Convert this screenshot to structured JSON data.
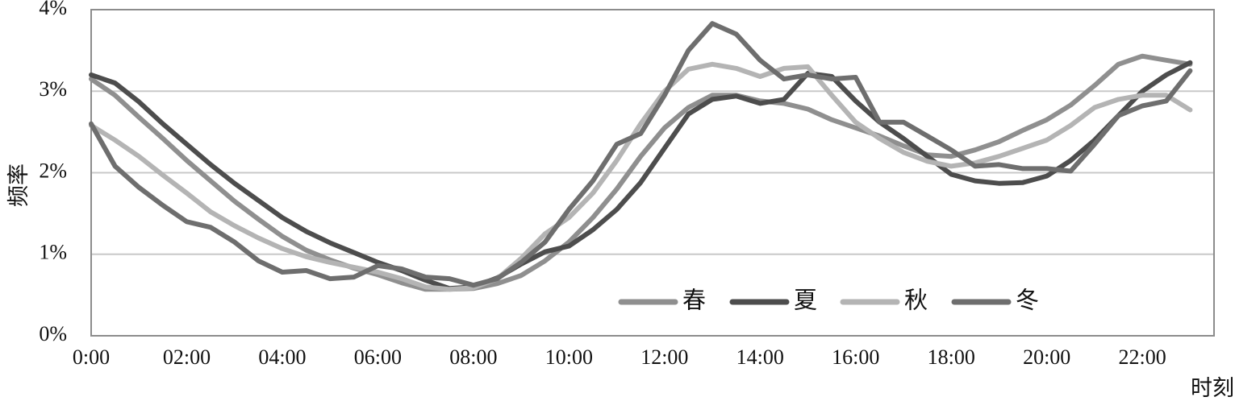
{
  "chart_data": {
    "type": "line",
    "xlabel": "时刻",
    "ylabel": "频率",
    "x_tick_labels": [
      "0:00",
      "02:00",
      "04:00",
      "06:00",
      "08:00",
      "10:00",
      "12:00",
      "14:00",
      "16:00",
      "18:00",
      "20:00",
      "22:00"
    ],
    "x_tick_hours": [
      0,
      2,
      4,
      6,
      8,
      10,
      12,
      14,
      16,
      18,
      20,
      22
    ],
    "y_tick_labels": [
      "0%",
      "1%",
      "2%",
      "3%",
      "4%"
    ],
    "y_ticks": [
      0,
      1,
      2,
      3,
      4
    ],
    "ylim": [
      0,
      4
    ],
    "xlim": [
      0,
      23.5
    ],
    "y_unit": "%",
    "grid": true,
    "legend_position": "bottom-right",
    "x": [
      0,
      0.5,
      1,
      1.5,
      2,
      2.5,
      3,
      3.5,
      4,
      4.5,
      5,
      5.5,
      6,
      6.5,
      7,
      7.5,
      8,
      8.5,
      9,
      9.5,
      10,
      10.5,
      11,
      11.5,
      12,
      12.5,
      13,
      13.5,
      14,
      14.5,
      15,
      15.5,
      16,
      16.5,
      17,
      17.5,
      18,
      18.5,
      19,
      19.5,
      20,
      20.5,
      21,
      21.5,
      22,
      22.5,
      23
    ],
    "series": [
      {
        "name": "春",
        "color": "#8f8f8f",
        "values": [
          3.15,
          2.95,
          2.68,
          2.42,
          2.15,
          1.9,
          1.65,
          1.43,
          1.22,
          1.05,
          0.93,
          0.83,
          0.75,
          0.65,
          0.57,
          0.57,
          0.58,
          0.64,
          0.74,
          0.92,
          1.15,
          1.45,
          1.8,
          2.2,
          2.55,
          2.8,
          2.95,
          2.95,
          2.88,
          2.85,
          2.78,
          2.65,
          2.55,
          2.45,
          2.33,
          2.22,
          2.2,
          2.28,
          2.38,
          2.52,
          2.65,
          2.83,
          3.07,
          3.33,
          3.43,
          3.38,
          3.33
        ]
      },
      {
        "name": "夏",
        "color": "#4d4d4d",
        "values": [
          3.2,
          3.1,
          2.87,
          2.6,
          2.35,
          2.1,
          1.87,
          1.66,
          1.45,
          1.28,
          1.14,
          1.02,
          0.9,
          0.8,
          0.68,
          0.58,
          0.6,
          0.71,
          0.88,
          1.03,
          1.1,
          1.3,
          1.55,
          1.88,
          2.3,
          2.72,
          2.9,
          2.94,
          2.85,
          2.9,
          3.22,
          3.18,
          2.88,
          2.62,
          2.42,
          2.2,
          1.98,
          1.9,
          1.87,
          1.88,
          1.96,
          2.15,
          2.4,
          2.7,
          3.0,
          3.2,
          3.35
        ]
      },
      {
        "name": "秋",
        "color": "#b4b4b4",
        "values": [
          2.58,
          2.4,
          2.2,
          1.97,
          1.75,
          1.52,
          1.35,
          1.2,
          1.07,
          0.97,
          0.9,
          0.84,
          0.78,
          0.7,
          0.6,
          0.57,
          0.59,
          0.7,
          0.95,
          1.25,
          1.45,
          1.75,
          2.15,
          2.6,
          3.0,
          3.27,
          3.33,
          3.28,
          3.18,
          3.28,
          3.3,
          2.95,
          2.62,
          2.42,
          2.25,
          2.14,
          2.08,
          2.12,
          2.2,
          2.3,
          2.4,
          2.58,
          2.8,
          2.9,
          2.95,
          2.95,
          2.77
        ]
      },
      {
        "name": "冬",
        "color": "#6e6e6e",
        "values": [
          2.6,
          2.08,
          1.82,
          1.6,
          1.4,
          1.33,
          1.15,
          0.92,
          0.78,
          0.8,
          0.7,
          0.72,
          0.86,
          0.82,
          0.72,
          0.7,
          0.62,
          0.7,
          0.9,
          1.15,
          1.55,
          1.9,
          2.35,
          2.48,
          2.95,
          3.5,
          3.83,
          3.7,
          3.38,
          3.15,
          3.2,
          3.15,
          3.17,
          2.62,
          2.62,
          2.45,
          2.28,
          2.08,
          2.1,
          2.05,
          2.05,
          2.02,
          2.35,
          2.7,
          2.82,
          2.88,
          3.25
        ]
      }
    ]
  }
}
